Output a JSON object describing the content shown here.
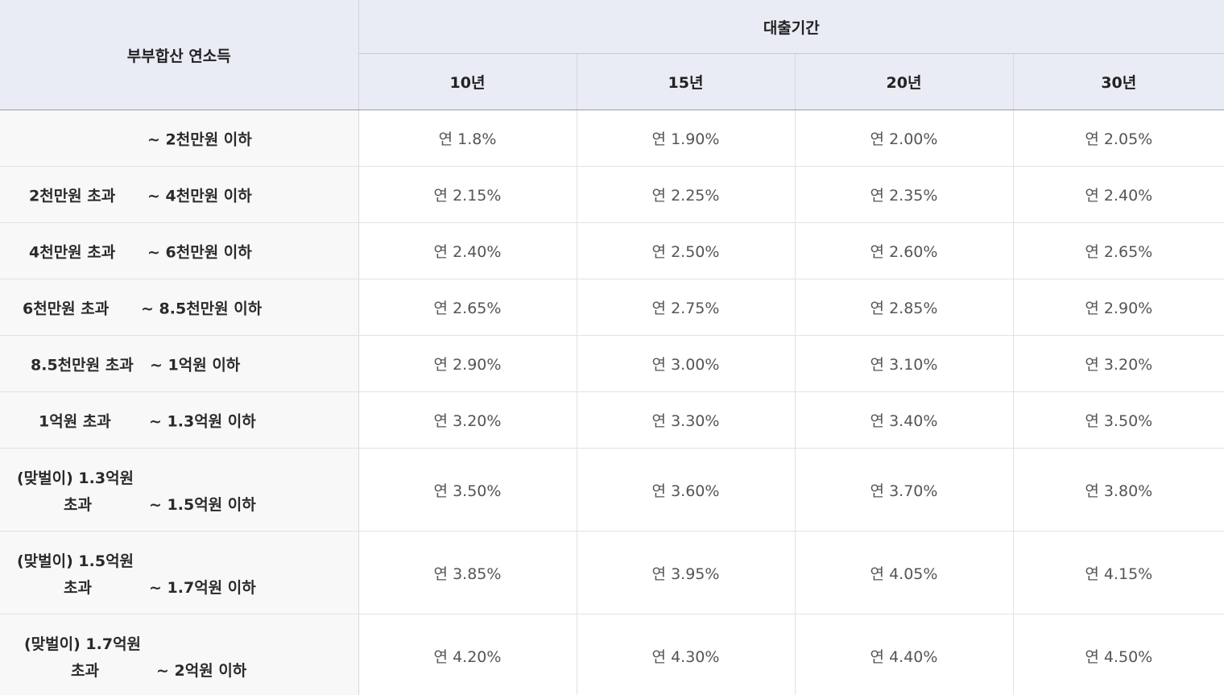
{
  "header": {
    "income_label": "부부합산 연소득",
    "period_group_label": "대출기간",
    "periods": [
      "10년",
      "15년",
      "20년",
      "30년"
    ]
  },
  "rows": [
    {
      "from": "",
      "to": "~ 2천만원 이하",
      "rates": [
        "연 1.8%",
        "연 1.90%",
        "연 2.00%",
        "연 2.05%"
      ]
    },
    {
      "from": "2천만원 초과",
      "to": "~ 4천만원 이하",
      "rates": [
        "연 2.15%",
        "연 2.25%",
        "연 2.35%",
        "연 2.40%"
      ]
    },
    {
      "from": "4천만원 초과",
      "to": "~ 6천만원 이하",
      "rates": [
        "연 2.40%",
        "연 2.50%",
        "연 2.60%",
        "연 2.65%"
      ]
    },
    {
      "from": "6천만원 초과",
      "to": "~ 8.5천만원 이하",
      "rates": [
        "연 2.65%",
        "연 2.75%",
        "연 2.85%",
        "연 2.90%"
      ]
    },
    {
      "from": "8.5천만원 초과",
      "to": "~ 1억원 이하",
      "rates": [
        "연 2.90%",
        "연 3.00%",
        "연 3.10%",
        "연 3.20%"
      ]
    },
    {
      "from": "1억원 초과",
      "to": "~ 1.3억원 이하",
      "rates": [
        "연 3.20%",
        "연 3.30%",
        "연 3.40%",
        "연 3.50%"
      ]
    },
    {
      "from_line1": "(맞벌이) 1.3억원",
      "from_line2": "초과",
      "to": "~ 1.5억원 이하",
      "rates": [
        "연 3.50%",
        "연 3.60%",
        "연 3.70%",
        "연 3.80%"
      ]
    },
    {
      "from_line1": "(맞벌이) 1.5억원",
      "from_line2": "초과",
      "to": "~ 1.7억원 이하",
      "rates": [
        "연 3.85%",
        "연 3.95%",
        "연 4.05%",
        "연 4.15%"
      ]
    },
    {
      "from_line1": "(맞벌이) 1.7억원",
      "from_line2": "초과",
      "to": "~ 2억원 이하",
      "rates": [
        "연 4.20%",
        "연 4.30%",
        "연 4.40%",
        "연 4.50%"
      ]
    }
  ]
}
